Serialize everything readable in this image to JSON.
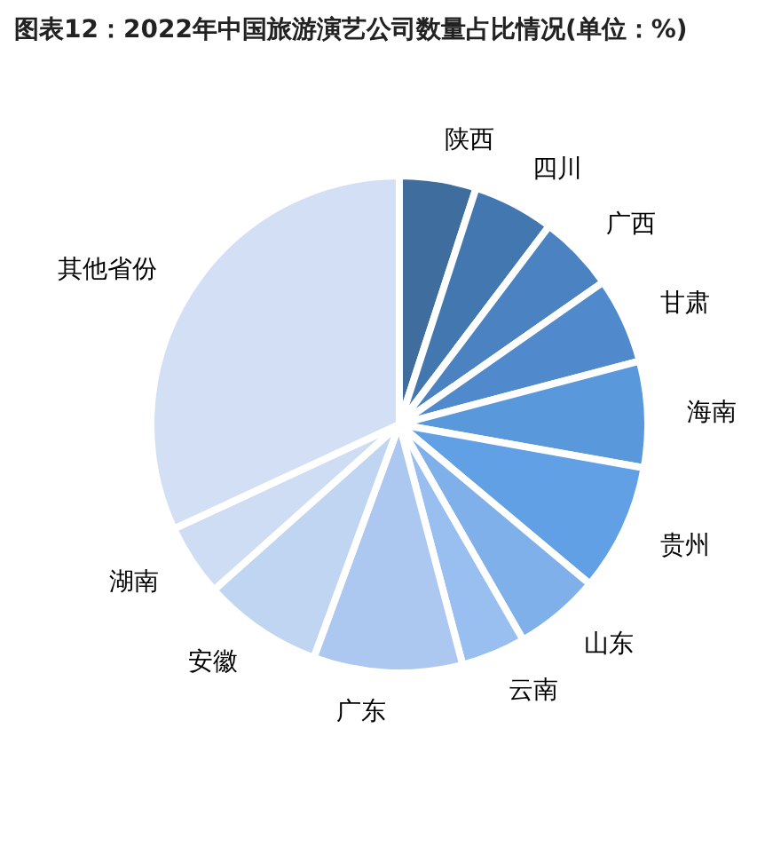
{
  "chart_data": {
    "type": "pie",
    "title": "图表12：2022年中国旅游演艺公司数量占比情况(单位：%)",
    "categories": [
      "陕西",
      "四川",
      "广西",
      "甘肃",
      "海南",
      "贵州",
      "山东",
      "云南",
      "广东",
      "安徽",
      "湖南",
      "其他省份"
    ],
    "values": [
      5,
      5.3,
      5,
      5.6,
      6.9,
      8.3,
      5.6,
      4.2,
      9.7,
      7.8,
      4.7,
      31.9
    ],
    "colors": [
      "#3f6d9e",
      "#4377b0",
      "#4a82c2",
      "#5089cc",
      "#5a98dc",
      "#62a0e6",
      "#7fb0ea",
      "#98bff0",
      "#adc8f0",
      "#c0d5f2",
      "#cedcf4",
      "#d3dff5"
    ]
  }
}
